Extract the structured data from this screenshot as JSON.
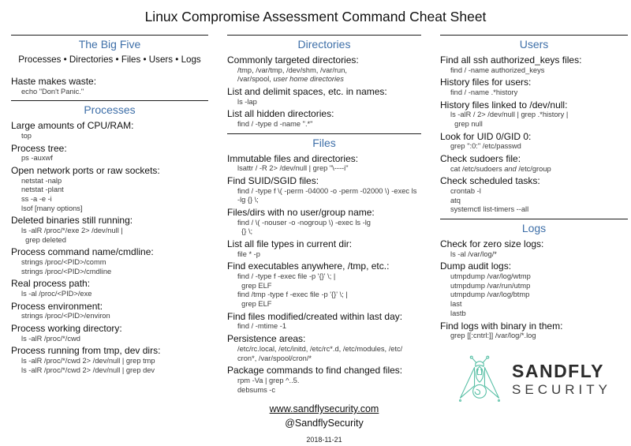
{
  "title": "Linux Compromise Assessment Command Cheat Sheet",
  "colors": {
    "heading_blue": "#3E6FA8",
    "logo_teal": "#57BFA5"
  },
  "columns": [
    {
      "sections": [
        {
          "heading": "The Big Five",
          "intro": "Processes • Directories • Files • Users • Logs",
          "entries": [
            {
              "label": "Haste makes waste:",
              "cmds": [
                "echo \"Don't Panic.\""
              ]
            }
          ]
        },
        {
          "heading": "Processes",
          "entries": [
            {
              "label": "Large amounts of CPU/RAM:",
              "cmds": [
                "top"
              ]
            },
            {
              "label": "Process tree:",
              "cmds": [
                "ps -auxwf"
              ]
            },
            {
              "label": "Open network ports or raw sockets:",
              "cmds": [
                "netstat -nalp",
                "netstat -plant",
                "ss -a -e -i",
                "lsof [many options]"
              ]
            },
            {
              "label": "Deleted binaries still running:",
              "cmds": [
                "ls -alR /proc/*/exe 2> /dev/null |",
                "  grep deleted"
              ]
            },
            {
              "label": "Process command name/cmdline:",
              "cmds": [
                "strings /proc/<PID>/comm",
                "strings /proc/<PID>/cmdline"
              ]
            },
            {
              "label": "Real process path:",
              "cmds": [
                "ls -al /proc/<PID>/exe"
              ]
            },
            {
              "label": "Process environment:",
              "cmds": [
                "strings /proc/<PID>/environ"
              ]
            },
            {
              "label": "Process working directory:",
              "cmds": [
                "ls -alR /proc/*/cwd"
              ]
            },
            {
              "label": "Process running from tmp, dev dirs:",
              "cmds": [
                "ls -alR /proc/*/cwd 2> /dev/null | grep tmp",
                "ls -alR /proc/*/cwd 2> /dev/null | grep dev"
              ]
            }
          ]
        }
      ]
    },
    {
      "sections": [
        {
          "heading": "Directories",
          "entries": [
            {
              "label": "Commonly targeted directories:",
              "cmds": [
                "/tmp, /var/tmp, /dev/shm, /var/run,",
                {
                  "parts": [
                    {
                      "t": "/var/spool, "
                    },
                    {
                      "t": "user home directories",
                      "i": true
                    }
                  ]
                }
              ]
            },
            {
              "label": "List and delimit spaces, etc. in names:",
              "cmds": [
                "ls -lap"
              ]
            },
            {
              "label": "List all hidden directories:",
              "cmds": [
                "find / -type d -name \".*\""
              ]
            }
          ]
        },
        {
          "heading": "Files",
          "entries": [
            {
              "label": "Immutable files and directories:",
              "cmds": [
                "lsattr / -R 2> /dev/null | grep \"\\----i\""
              ]
            },
            {
              "label": "Find SUID/SGID files:",
              "cmds": [
                "find / -type f \\( -perm -04000 -o -perm -02000 \\) -exec ls",
                "-lg {} \\;"
              ]
            },
            {
              "label": "Files/dirs with no user/group name:",
              "cmds": [
                "find / \\( -nouser -o -nogroup \\) -exec ls -lg",
                "  {} \\;"
              ]
            },
            {
              "label": "List all file types in current dir:",
              "cmds": [
                "file * -p"
              ]
            },
            {
              "label": "Find executables anywhere, /tmp, etc.:",
              "cmds": [
                "find / -type f -exec file -p '{}' \\; |",
                "  grep ELF",
                "find /tmp -type f -exec file -p '{}' \\; |",
                "  grep ELF"
              ]
            },
            {
              "label": "Find files modified/created within last day:",
              "cmds": [
                "find / -mtime -1"
              ]
            },
            {
              "label": "Persistence areas:",
              "cmds": [
                "/etc/rc.local, /etc/initd, /etc/rc*.d, /etc/modules, /etc/",
                "cron*, /var/spool/cron/*"
              ]
            },
            {
              "label": "Package commands to find changed files:",
              "cmds": [
                "rpm -Va | grep ^..5.",
                "debsums -c"
              ]
            }
          ]
        }
      ],
      "footer": {
        "website": "www.sandflysecurity.com",
        "twitter": "@SandflySecurity",
        "date": "2018-11-21"
      }
    },
    {
      "sections": [
        {
          "heading": "Users",
          "entries": [
            {
              "label": "Find all ssh authorized_keys files:",
              "cmds": [
                "find / -name authorized_keys"
              ]
            },
            {
              "label": "History files for users:",
              "cmds": [
                "find / -name .*history"
              ]
            },
            {
              "label": "History files linked to /dev/null:",
              "cmds": [
                "ls -alR / 2> /dev/null | grep .*history |",
                "  grep null"
              ]
            },
            {
              "label": "Look for UID 0/GID 0:",
              "cmds": [
                "grep \":0:\" /etc/passwd"
              ]
            },
            {
              "label": "Check sudoers file:",
              "cmds": [
                {
                  "parts": [
                    {
                      "t": "cat /etc/sudoers "
                    },
                    {
                      "t": "and",
                      "i": true
                    },
                    {
                      "t": " /etc/group"
                    }
                  ]
                }
              ]
            },
            {
              "label": "Check scheduled tasks:",
              "cmds": [
                "crontab -l",
                "atq",
                "systemctl list-timers --all"
              ]
            }
          ]
        },
        {
          "heading": "Logs",
          "entries": [
            {
              "label": "Check for zero size logs:",
              "cmds": [
                "ls -al /var/log/*"
              ]
            },
            {
              "label": "Dump audit logs:",
              "cmds": [
                "utmpdump /var/log/wtmp",
                "utmpdump /var/run/utmp",
                "utmpdump /var/log/btmp",
                "last",
                "lastb"
              ]
            },
            {
              "label": "Find logs with binary in them:",
              "cmds": [
                "grep [[:cntrl:]] /var/log/*.log"
              ]
            }
          ]
        }
      ],
      "logo": {
        "name": "SANDFLY",
        "sub": "SECURITY"
      }
    }
  ]
}
